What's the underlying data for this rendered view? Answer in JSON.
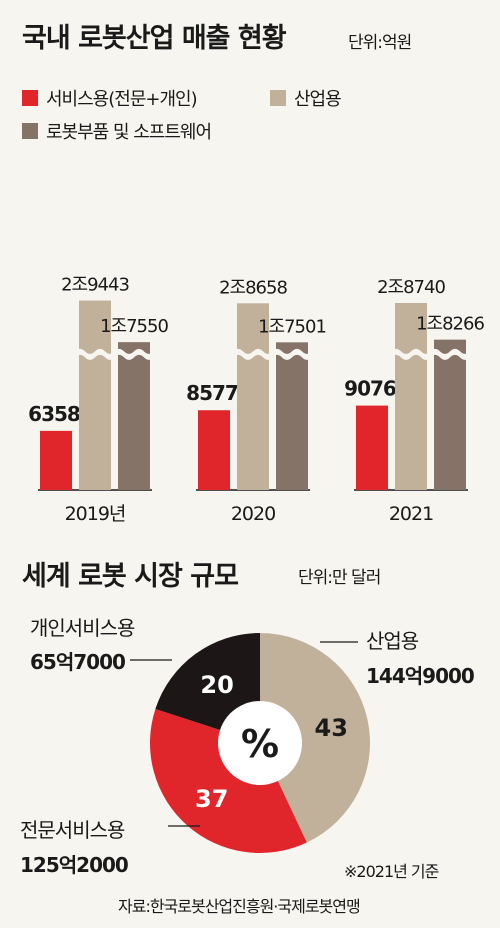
{
  "domestic": {
    "title": "국내 로봇산업 매출 현황",
    "unit": "단위:억원",
    "legend": [
      "서비스용(전문+개인)",
      "산업용",
      "로봇부품 및 소프트웨어"
    ]
  },
  "world": {
    "title": "세계 로봇 시장 규모",
    "unit": "단위:만 달러",
    "center_label": "%",
    "labels": {
      "personal_name": "개인서비스용",
      "personal_value": "65억7000",
      "industrial_name": "산업용",
      "industrial_value": "144억9000",
      "professional_name": "전문서비스용",
      "professional_value": "125억2000"
    }
  },
  "footer": {
    "basis": "※2021년 기준",
    "source": "자료:한국로봇산업진흥원·국제로봇연맹"
  },
  "colors": {
    "red": "#e0262b",
    "beige": "#c2b19a",
    "brown": "#857368",
    "black": "#1c1616",
    "bg": "#f7f5f0"
  },
  "chart_data": [
    {
      "type": "bar",
      "categories": [
        "2019년",
        "2020",
        "2021"
      ],
      "series": [
        {
          "name": "서비스용(전문+개인)",
          "values": [
            6358,
            8577,
            9076
          ],
          "labels": [
            "6358",
            "8577",
            "9076"
          ]
        },
        {
          "name": "산업용",
          "values": [
            29443,
            28658,
            28740
          ],
          "labels": [
            "2조9443",
            "2조8658",
            "2조8740"
          ]
        },
        {
          "name": "로봇부품 및 소프트웨어",
          "values": [
            17550,
            17501,
            18266
          ],
          "labels": [
            "1조7550",
            "1조7501",
            "1조8266"
          ]
        }
      ],
      "axis_break": true
    },
    {
      "type": "pie",
      "categories": [
        "산업용",
        "전문서비스용",
        "개인서비스용"
      ],
      "values": [
        43,
        37,
        20
      ]
    }
  ]
}
